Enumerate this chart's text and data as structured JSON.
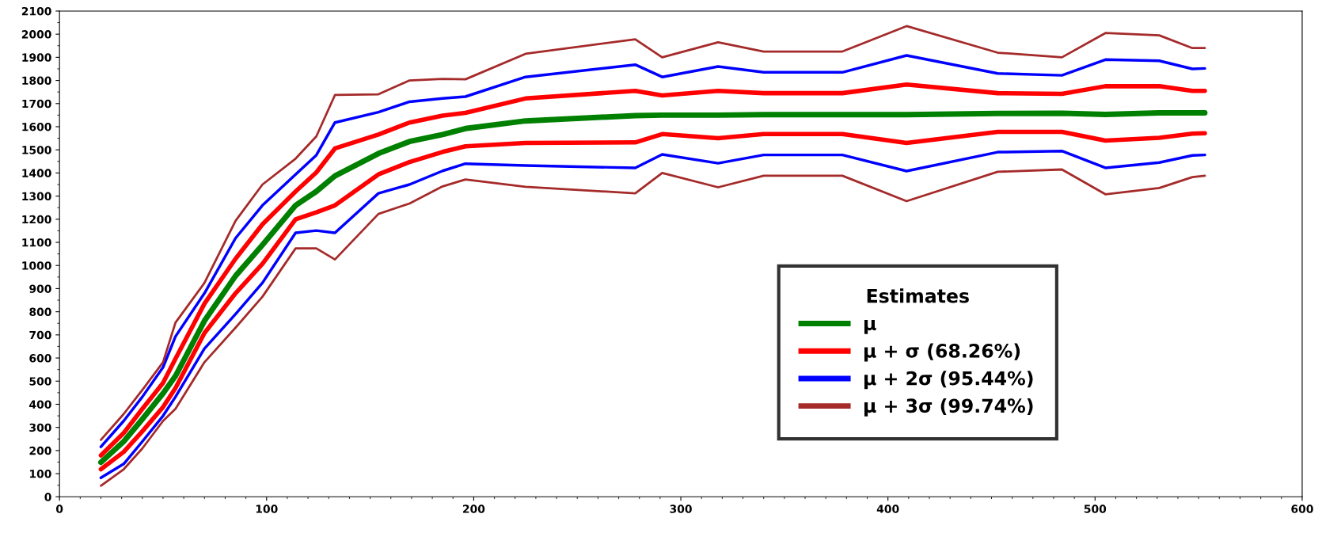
{
  "chart_data": {
    "type": "line",
    "legend_title": "Estimates",
    "legend": "bottom right",
    "grid": false,
    "marker": "none",
    "line_style": "solid",
    "x": [
      20,
      31,
      40,
      50,
      56,
      70,
      85,
      98,
      114,
      124,
      133,
      154,
      169,
      185,
      196,
      225,
      278,
      291,
      318,
      340,
      378,
      409,
      453,
      484,
      505,
      531,
      547,
      553
    ],
    "xlim": [
      0,
      600
    ],
    "xticks": [
      0,
      100,
      200,
      300,
      400,
      500,
      600
    ],
    "ylim": [
      0,
      2100
    ],
    "yticks": [
      0,
      100,
      200,
      300,
      400,
      500,
      600,
      700,
      800,
      900,
      1000,
      1100,
      1200,
      1300,
      1400,
      1500,
      1600,
      1700,
      1800,
      1900,
      2000,
      2100
    ],
    "series": [
      {
        "name": "μ",
        "color": "#008000",
        "values": [
          149,
          239,
          336,
          447,
          522,
          761,
          955,
          1089,
          1260,
          1320,
          1387,
          1484,
          1536,
          1566,
          1592,
          1625,
          1648,
          1650,
          1650,
          1652,
          1652,
          1652,
          1657,
          1658,
          1653,
          1660,
          1660,
          1660
        ]
      },
      {
        "name": "μ + σ (68.26%)",
        "color": "#ff0000",
        "values": [
          179,
          276,
          380,
          492,
          597,
          835,
          1029,
          1178,
          1320,
          1402,
          1506,
          1566,
          1618,
          1648,
          1660,
          1722,
          1755,
          1735,
          1755,
          1745,
          1745,
          1782,
          1745,
          1742,
          1775,
          1775,
          1755,
          1755
        ]
      },
      {
        "color": "#ff0000",
        "values": [
          119,
          194,
          283,
          388,
          470,
          708,
          880,
          1007,
          1200,
          1230,
          1260,
          1394,
          1447,
          1491,
          1515,
          1530,
          1532,
          1568,
          1550,
          1568,
          1568,
          1530,
          1578,
          1578,
          1540,
          1552,
          1570,
          1572
        ]
      },
      {
        "name": "μ + 2σ (95.44%)",
        "color": "#0000ff",
        "values": [
          216,
          328,
          432,
          560,
          693,
          880,
          1118,
          1260,
          1394,
          1477,
          1618,
          1663,
          1708,
          1722,
          1730,
          1815,
          1868,
          1815,
          1860,
          1835,
          1835,
          1908,
          1830,
          1822,
          1890,
          1885,
          1850,
          1852
        ]
      },
      {
        "color": "#0000ff",
        "values": [
          82,
          142,
          239,
          350,
          432,
          641,
          790,
          925,
          1141,
          1151,
          1141,
          1312,
          1350,
          1409,
          1440,
          1432,
          1422,
          1480,
          1442,
          1478,
          1478,
          1408,
          1490,
          1495,
          1422,
          1445,
          1476,
          1478
        ]
      },
      {
        "name": "μ + 3σ (99.74%)",
        "color": "#a52a2a",
        "values": [
          246,
          358,
          462,
          582,
          753,
          925,
          1193,
          1350,
          1462,
          1558,
          1737,
          1740,
          1800,
          1807,
          1805,
          1915,
          1978,
          1900,
          1965,
          1925,
          1925,
          2035,
          1920,
          1900,
          2005,
          1995,
          1940,
          1940
        ]
      },
      {
        "color": "#a52a2a",
        "values": [
          48,
          119,
          209,
          328,
          380,
          582,
          731,
          865,
          1074,
          1074,
          1026,
          1223,
          1268,
          1342,
          1372,
          1340,
          1312,
          1400,
          1338,
          1388,
          1388,
          1278,
          1405,
          1415,
          1308,
          1335,
          1382,
          1388
        ]
      }
    ]
  }
}
